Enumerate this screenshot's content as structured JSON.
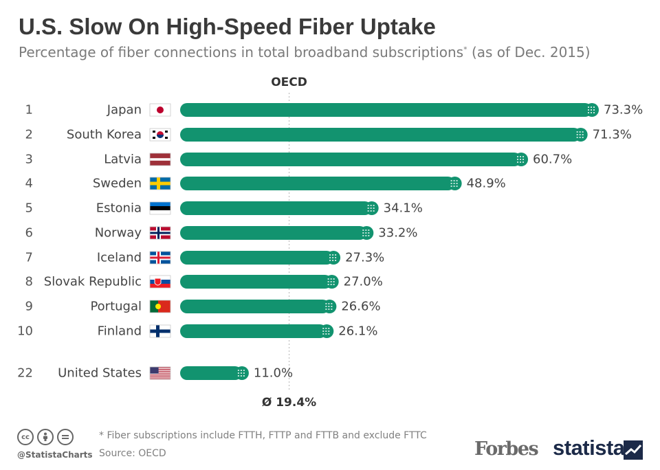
{
  "title": "U.S. Slow On High-Speed Fiber Uptake",
  "subtitle": "Percentage of fiber connections in total broadband subscriptions",
  "subtitle_mark": "*",
  "subtitle_suffix": " (as of Dec. 2015)",
  "colors": {
    "bar": "#12936f",
    "text": "#3a3a3a",
    "muted": "#7a7a7a"
  },
  "chart_data": {
    "type": "bar",
    "orientation": "horizontal",
    "title": "U.S. Slow On High-Speed Fiber Uptake",
    "xlabel": "",
    "ylabel": "",
    "xlim": [
      0,
      73.3
    ],
    "value_suffix": "%",
    "reference_line": {
      "label": "OECD",
      "value": 19.4,
      "value_label": "Ø 19.4%"
    },
    "rows": [
      {
        "rank": "1",
        "country": "Japan",
        "flag": "japan-flag",
        "value": 73.3,
        "label": "73.3%"
      },
      {
        "rank": "2",
        "country": "South Korea",
        "flag": "south-korea-flag",
        "value": 71.3,
        "label": "71.3%"
      },
      {
        "rank": "3",
        "country": "Latvia",
        "flag": "latvia-flag",
        "value": 60.7,
        "label": "60.7%"
      },
      {
        "rank": "4",
        "country": "Sweden",
        "flag": "sweden-flag",
        "value": 48.9,
        "label": "48.9%"
      },
      {
        "rank": "5",
        "country": "Estonia",
        "flag": "estonia-flag",
        "value": 34.1,
        "label": "34.1%"
      },
      {
        "rank": "6",
        "country": "Norway",
        "flag": "norway-flag",
        "value": 33.2,
        "label": "33.2%"
      },
      {
        "rank": "7",
        "country": "Iceland",
        "flag": "iceland-flag",
        "value": 27.3,
        "label": "27.3%"
      },
      {
        "rank": "8",
        "country": "Slovak Republic",
        "flag": "slovakia-flag",
        "value": 27.0,
        "label": "27.0%"
      },
      {
        "rank": "9",
        "country": "Portugal",
        "flag": "portugal-flag",
        "value": 26.6,
        "label": "26.6%"
      },
      {
        "rank": "10",
        "country": "Finland",
        "flag": "finland-flag",
        "value": 26.1,
        "label": "26.1%"
      },
      {
        "rank": "22",
        "country": "United States",
        "flag": "usa-flag",
        "value": 11.0,
        "label": "11.0%"
      }
    ]
  },
  "footer": {
    "note": "* Fiber subscriptions include FTTH, FTTP and FTTB and exclude FTTC",
    "source": "Source: OECD",
    "handle": "@StatistaCharts",
    "forbes": "Forbes",
    "statista": "statista",
    "license_icons": [
      "cc-icon",
      "attribution-icon",
      "no-derivatives-icon"
    ]
  }
}
